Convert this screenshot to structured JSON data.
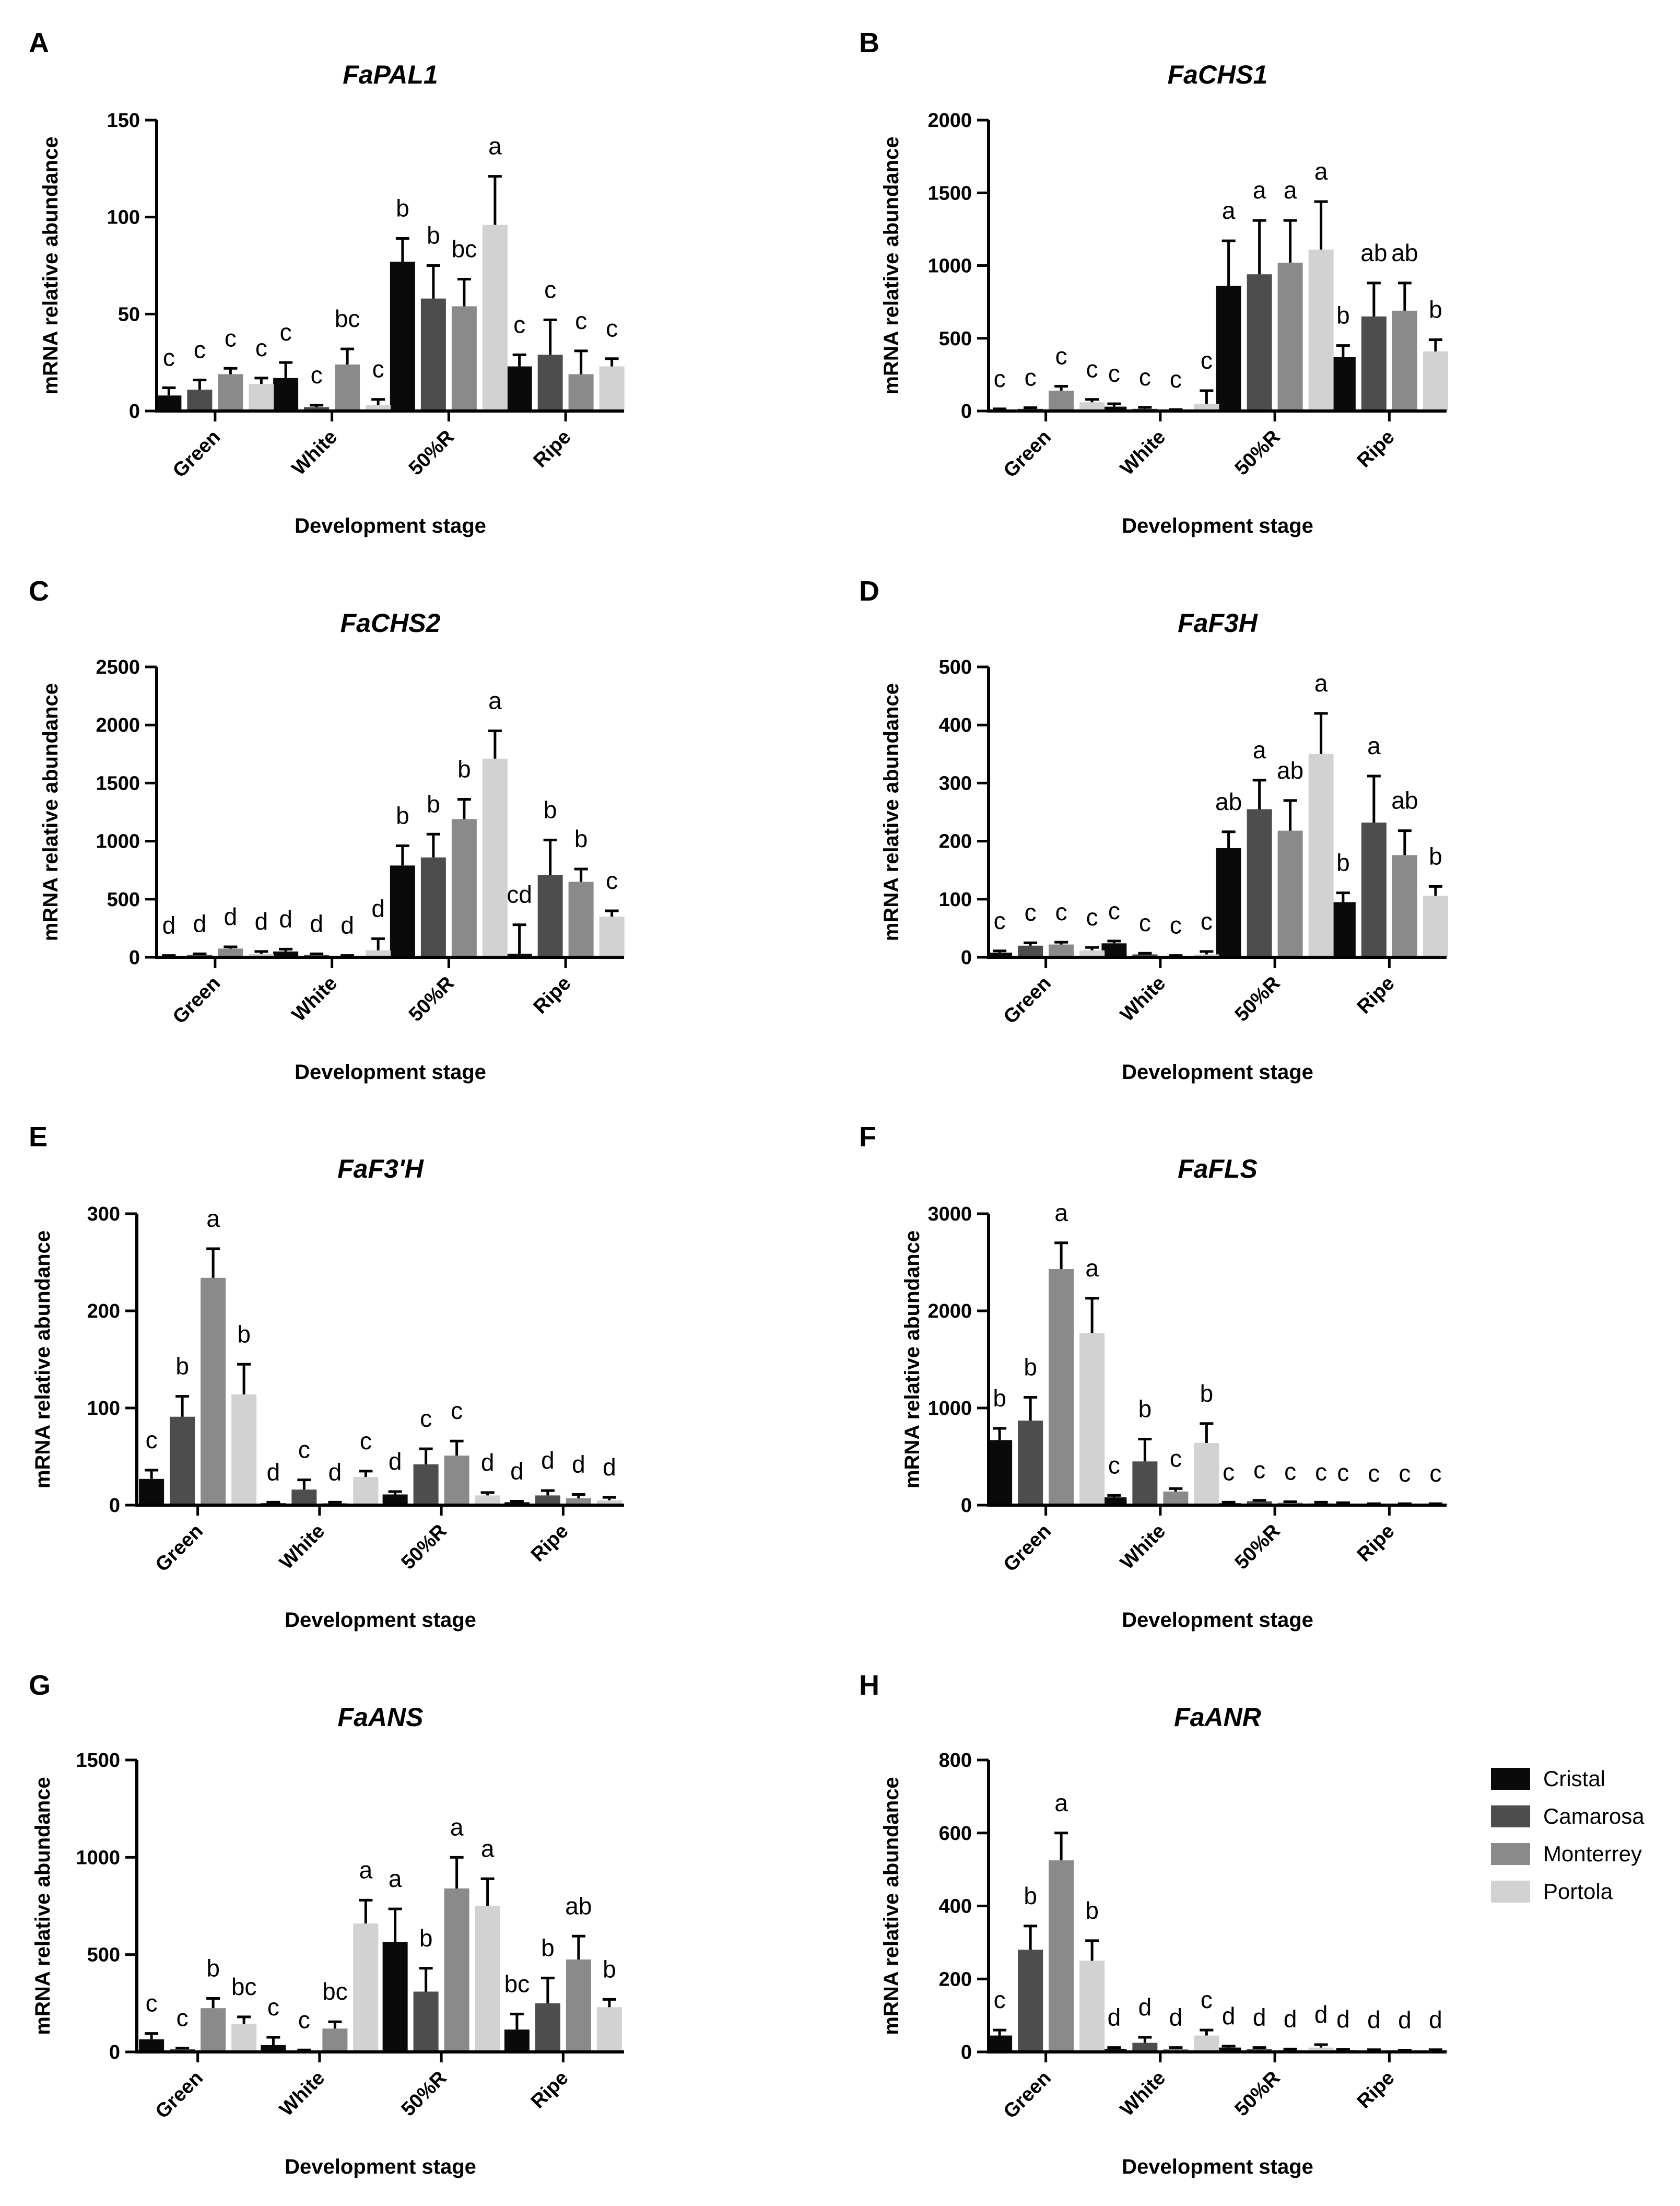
{
  "figure": {
    "legend": [
      {
        "name": "Cristal",
        "color": "#0a0a0a"
      },
      {
        "name": "Camarosa",
        "color": "#4d4d4d"
      },
      {
        "name": "Monterrey",
        "color": "#8a8a8a"
      },
      {
        "name": "Portola",
        "color": "#d2d2d2"
      }
    ]
  },
  "chart_data": [
    {
      "panel": "A",
      "title": "FaPAL1",
      "type": "bar",
      "categories": [
        "Green",
        "White",
        "50%R",
        "Ripe"
      ],
      "xlabel": "Development stage",
      "ylabel": "mRNA relative abundance",
      "ylim": [
        0,
        150
      ],
      "yticks": [
        0,
        50,
        100,
        150
      ],
      "series": [
        {
          "name": "Cristal",
          "values": [
            8,
            17,
            77,
            23
          ],
          "errors": [
            4,
            8,
            12,
            6
          ],
          "labels": [
            "c",
            "c",
            "b",
            "c"
          ]
        },
        {
          "name": "Camarosa",
          "values": [
            11,
            2,
            58,
            29
          ],
          "errors": [
            5,
            1,
            17,
            18
          ],
          "labels": [
            "c",
            "c",
            "b",
            "c"
          ]
        },
        {
          "name": "Monterrey",
          "values": [
            19,
            24,
            54,
            19
          ],
          "errors": [
            3,
            8,
            14,
            12
          ],
          "labels": [
            "c",
            "bc",
            "bc",
            "c"
          ]
        },
        {
          "name": "Portola",
          "values": [
            14,
            3,
            96,
            23
          ],
          "errors": [
            3,
            3,
            25,
            4
          ],
          "labels": [
            "c",
            "c",
            "a",
            "c"
          ]
        }
      ]
    },
    {
      "panel": "B",
      "title": "FaCHS1",
      "type": "bar",
      "categories": [
        "Green",
        "White",
        "50%R",
        "Ripe"
      ],
      "xlabel": "Development stage",
      "ylabel": "mRNA relative abundance",
      "ylim": [
        0,
        2000
      ],
      "yticks": [
        0,
        500,
        1000,
        1500,
        2000
      ],
      "series": [
        {
          "name": "Cristal",
          "values": [
            10,
            30,
            860,
            370
          ],
          "errors": [
            5,
            20,
            310,
            80
          ],
          "labels": [
            "c",
            "c",
            "a",
            "b"
          ]
        },
        {
          "name": "Camarosa",
          "values": [
            15,
            15,
            940,
            650
          ],
          "errors": [
            8,
            10,
            370,
            230
          ],
          "labels": [
            "c",
            "c",
            "a",
            "ab"
          ]
        },
        {
          "name": "Monterrey",
          "values": [
            140,
            5,
            1020,
            690
          ],
          "errors": [
            30,
            5,
            290,
            190
          ],
          "labels": [
            "c",
            "c",
            "a",
            "ab"
          ]
        },
        {
          "name": "Portola",
          "values": [
            60,
            50,
            1110,
            410
          ],
          "errors": [
            20,
            90,
            330,
            80
          ],
          "labels": [
            "c",
            "c",
            "a",
            "b"
          ]
        }
      ]
    },
    {
      "panel": "C",
      "title": "FaCHS2",
      "type": "bar",
      "categories": [
        "Green",
        "White",
        "50%R",
        "Ripe"
      ],
      "xlabel": "Development stage",
      "ylabel": "mRNA relative abundance",
      "ylim": [
        0,
        2500
      ],
      "yticks": [
        0,
        500,
        1000,
        1500,
        2000,
        2500
      ],
      "series": [
        {
          "name": "Cristal",
          "values": [
            10,
            50,
            790,
            30
          ],
          "errors": [
            5,
            20,
            170,
            250
          ],
          "labels": [
            "d",
            "d",
            "b",
            "cd"
          ]
        },
        {
          "name": "Camarosa",
          "values": [
            20,
            20,
            860,
            710
          ],
          "errors": [
            10,
            10,
            200,
            300
          ],
          "labels": [
            "d",
            "d",
            "b",
            "b"
          ]
        },
        {
          "name": "Monterrey",
          "values": [
            75,
            10,
            1190,
            650
          ],
          "errors": [
            15,
            5,
            170,
            110
          ],
          "labels": [
            "d",
            "d",
            "b",
            "b"
          ]
        },
        {
          "name": "Portola",
          "values": [
            30,
            60,
            1710,
            350
          ],
          "errors": [
            20,
            100,
            240,
            50
          ],
          "labels": [
            "d",
            "d",
            "a",
            "c"
          ]
        }
      ]
    },
    {
      "panel": "D",
      "title": "FaF3H",
      "type": "bar",
      "categories": [
        "Green",
        "White",
        "50%R",
        "Ripe"
      ],
      "xlabel": "Development stage",
      "ylabel": "mRNA relative abundance",
      "ylim": [
        0,
        500
      ],
      "yticks": [
        0,
        100,
        200,
        300,
        400,
        500
      ],
      "series": [
        {
          "name": "Cristal",
          "values": [
            8,
            24,
            188,
            95
          ],
          "errors": [
            3,
            4,
            28,
            16
          ],
          "labels": [
            "c",
            "c",
            "ab",
            "b"
          ]
        },
        {
          "name": "Camarosa",
          "values": [
            20,
            5,
            255,
            232
          ],
          "errors": [
            5,
            2,
            50,
            80
          ],
          "labels": [
            "c",
            "c",
            "a",
            "a"
          ]
        },
        {
          "name": "Monterrey",
          "values": [
            22,
            2,
            218,
            176
          ],
          "errors": [
            4,
            1,
            52,
            42
          ],
          "labels": [
            "c",
            "c",
            "ab",
            "ab"
          ]
        },
        {
          "name": "Portola",
          "values": [
            12,
            5,
            350,
            106
          ],
          "errors": [
            5,
            5,
            70,
            16
          ],
          "labels": [
            "c",
            "c",
            "a",
            "b"
          ]
        }
      ]
    },
    {
      "panel": "E",
      "title": "FaF3'H",
      "type": "bar",
      "categories": [
        "Green",
        "White",
        "50%R",
        "Ripe"
      ],
      "xlabel": "Development stage",
      "ylabel": "mRNA relative abundance",
      "ylim": [
        0,
        300
      ],
      "yticks": [
        0,
        100,
        200,
        300
      ],
      "series": [
        {
          "name": "Cristal",
          "values": [
            27,
            2,
            11,
            3
          ],
          "errors": [
            9,
            1,
            3,
            1
          ],
          "labels": [
            "c",
            "d",
            "d",
            "d"
          ]
        },
        {
          "name": "Camarosa",
          "values": [
            91,
            16,
            42,
            10
          ],
          "errors": [
            21,
            10,
            16,
            5
          ],
          "labels": [
            "b",
            "c",
            "c",
            "d"
          ]
        },
        {
          "name": "Monterrey",
          "values": [
            234,
            2,
            51,
            7
          ],
          "errors": [
            30,
            1,
            15,
            4
          ],
          "labels": [
            "a",
            "d",
            "c",
            "d"
          ]
        },
        {
          "name": "Portola",
          "values": [
            114,
            29,
            10,
            5
          ],
          "errors": [
            31,
            6,
            3,
            3
          ],
          "labels": [
            "b",
            "c",
            "d",
            "d"
          ]
        }
      ]
    },
    {
      "panel": "F",
      "title": "FaFLS",
      "type": "bar",
      "categories": [
        "Green",
        "White",
        "50%R",
        "Ripe"
      ],
      "xlabel": "Development stage",
      "ylabel": "mRNA relative abundance",
      "ylim": [
        0,
        3000
      ],
      "yticks": [
        0,
        1000,
        2000,
        3000
      ],
      "series": [
        {
          "name": "Cristal",
          "values": [
            670,
            80,
            20,
            15
          ],
          "errors": [
            120,
            20,
            10,
            10
          ],
          "labels": [
            "b",
            "c",
            "c",
            "c"
          ]
        },
        {
          "name": "Camarosa",
          "values": [
            870,
            450,
            40,
            10
          ],
          "errors": [
            240,
            230,
            10,
            5
          ],
          "labels": [
            "b",
            "b",
            "c",
            "c"
          ]
        },
        {
          "name": "Monterrey",
          "values": [
            2430,
            140,
            25,
            10
          ],
          "errors": [
            270,
            30,
            10,
            5
          ],
          "labels": [
            "a",
            "c",
            "c",
            "c"
          ]
        },
        {
          "name": "Portola",
          "values": [
            1770,
            640,
            20,
            10
          ],
          "errors": [
            360,
            200,
            10,
            5
          ],
          "labels": [
            "a",
            "b",
            "c",
            "c"
          ]
        }
      ]
    },
    {
      "panel": "G",
      "title": "FaANS",
      "type": "bar",
      "categories": [
        "Green",
        "White",
        "50%R",
        "Ripe"
      ],
      "xlabel": "Development stage",
      "ylabel": "mRNA relative abundance",
      "ylim": [
        0,
        1500
      ],
      "yticks": [
        0,
        500,
        1000,
        1500
      ],
      "series": [
        {
          "name": "Cristal",
          "values": [
            65,
            35,
            565,
            115
          ],
          "errors": [
            30,
            40,
            170,
            80
          ],
          "labels": [
            "c",
            "c",
            "a",
            "bc"
          ]
        },
        {
          "name": "Camarosa",
          "values": [
            15,
            5,
            310,
            250
          ],
          "errors": [
            5,
            5,
            120,
            130
          ],
          "labels": [
            "c",
            "c",
            "b",
            "b"
          ]
        },
        {
          "name": "Monterrey",
          "values": [
            225,
            120,
            840,
            475
          ],
          "errors": [
            50,
            35,
            160,
            120
          ],
          "labels": [
            "b",
            "bc",
            "a",
            "ab"
          ]
        },
        {
          "name": "Portola",
          "values": [
            145,
            660,
            750,
            230
          ],
          "errors": [
            35,
            120,
            140,
            40
          ],
          "labels": [
            "bc",
            "a",
            "a",
            "b"
          ]
        }
      ]
    },
    {
      "panel": "H",
      "title": "FaANR",
      "type": "bar",
      "categories": [
        "Green",
        "White",
        "50%R",
        "Ripe"
      ],
      "xlabel": "Development stage",
      "ylabel": "mRNA relative abundance",
      "ylim": [
        0,
        800
      ],
      "yticks": [
        0,
        200,
        400,
        600,
        800
      ],
      "series": [
        {
          "name": "Cristal",
          "values": [
            45,
            8,
            12,
            5
          ],
          "errors": [
            15,
            4,
            4,
            2
          ],
          "labels": [
            "c",
            "d",
            "d",
            "d"
          ]
        },
        {
          "name": "Camarosa",
          "values": [
            280,
            25,
            8,
            4
          ],
          "errors": [
            65,
            15,
            4,
            2
          ],
          "labels": [
            "b",
            "d",
            "d",
            "d"
          ]
        },
        {
          "name": "Monterrey",
          "values": [
            525,
            8,
            5,
            3
          ],
          "errors": [
            75,
            4,
            3,
            2
          ],
          "labels": [
            "a",
            "d",
            "d",
            "d"
          ]
        },
        {
          "name": "Portola",
          "values": [
            250,
            45,
            12,
            4
          ],
          "errors": [
            55,
            15,
            8,
            2
          ],
          "labels": [
            "b",
            "c",
            "d",
            "d"
          ]
        }
      ]
    }
  ]
}
